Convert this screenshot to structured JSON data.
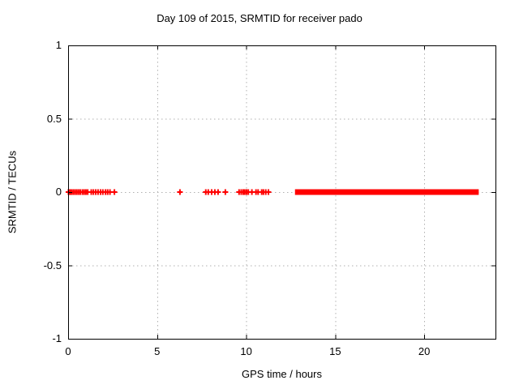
{
  "chart_data": {
    "type": "scatter",
    "title": "Day 109 of 2015, SRMTID for receiver pado",
    "xlabel": "GPS time / hours",
    "ylabel": "SRMTID / TECUs",
    "xlim": [
      0,
      24
    ],
    "ylim": [
      -1,
      1
    ],
    "xticks": [
      0,
      5,
      10,
      15,
      20
    ],
    "xtick_labels": [
      "0",
      "5",
      "10",
      "15",
      "20"
    ],
    "yticks": [
      -1,
      -0.5,
      0,
      0.5,
      1
    ],
    "ytick_labels": [
      "-1",
      "-0.5",
      "0",
      "0.5",
      "1"
    ],
    "grid": "dotted",
    "legend_position": "none",
    "marker": "plus",
    "marker_color": "#ff0000",
    "axis_color": "#000000",
    "grid_color": "#b0b0b0",
    "series": [
      {
        "name": "SRMTID",
        "y_constant": 0,
        "x_points": [
          0.02,
          0.1,
          0.18,
          0.28,
          0.38,
          0.48,
          0.58,
          0.68,
          0.8,
          0.9,
          1.0,
          1.1,
          1.3,
          1.42,
          1.55,
          1.68,
          1.82,
          1.95,
          2.1,
          2.22,
          2.35,
          2.6,
          6.28,
          7.73,
          7.87,
          8.06,
          8.24,
          8.42,
          8.83,
          9.6,
          9.72,
          9.83,
          9.92,
          10.02,
          10.12,
          10.32,
          10.55,
          10.67,
          10.87,
          10.97,
          11.1,
          11.25
        ],
        "x_dense_block": [
          12.9,
          22.9
        ]
      }
    ]
  }
}
